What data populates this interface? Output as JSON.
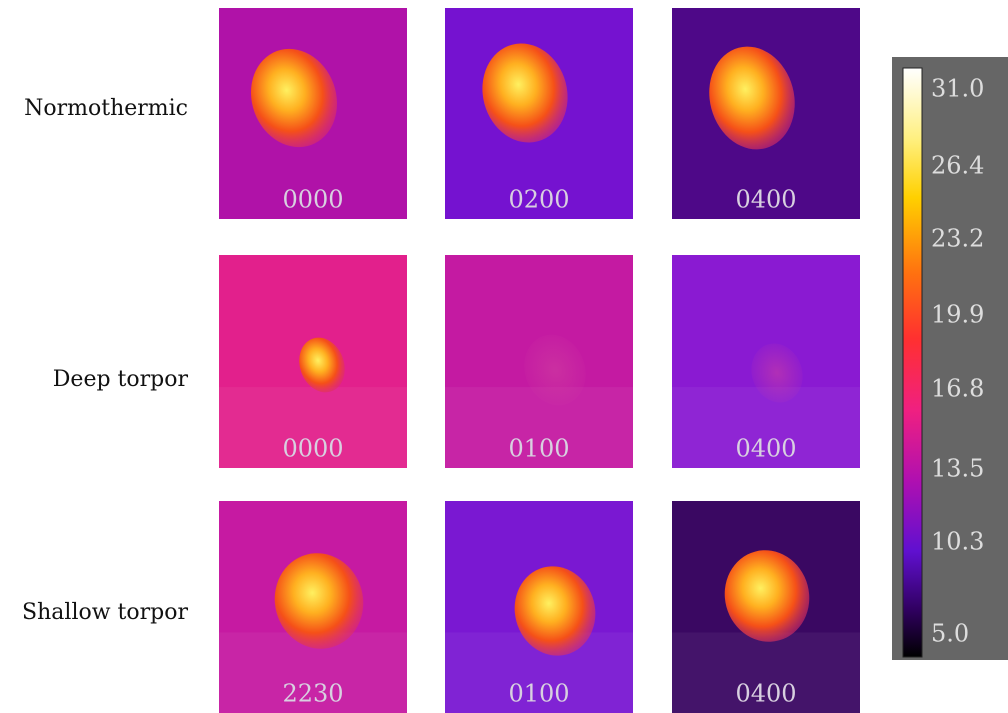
{
  "rows": [
    {
      "label": "Normothermic",
      "panels": [
        "0000",
        "0200",
        "0400"
      ]
    },
    {
      "label": "Deep torpor",
      "panels": [
        "0000",
        "0100",
        "0400"
      ]
    },
    {
      "label": "Shallow torpor",
      "panels": [
        "2230",
        "0100",
        "0400"
      ]
    }
  ],
  "colorbar": {
    "ticks": [
      "31.0",
      "26.4",
      "23.2",
      "19.9",
      "16.8",
      "13.5",
      "10.3",
      "5.0"
    ]
  }
}
